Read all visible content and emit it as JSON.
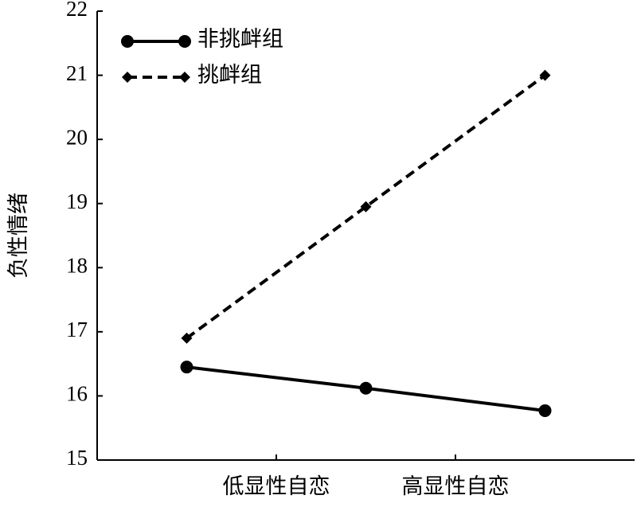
{
  "chart_data": {
    "type": "line",
    "ylabel": "负性情绪",
    "x": [
      0.5,
      1.5,
      2.5
    ],
    "xlim": [
      0,
      3
    ],
    "xticks": [
      {
        "value": 1,
        "label": "低显性自恋"
      },
      {
        "value": 2,
        "label": "高显性自恋"
      }
    ],
    "ylim": [
      15,
      22
    ],
    "yticks": [
      15,
      16,
      17,
      18,
      19,
      20,
      21,
      22
    ],
    "grid": false,
    "legend": "upper left",
    "series": [
      {
        "name": "非挑衅组",
        "color": "#000000",
        "dash": "solid",
        "marker": "circle",
        "values": [
          16.45,
          16.12,
          15.77
        ]
      },
      {
        "name": "挑衅组",
        "color": "#000000",
        "dash": "dashed",
        "marker": "diamond",
        "values": [
          16.9,
          18.95,
          21.0
        ]
      }
    ]
  }
}
